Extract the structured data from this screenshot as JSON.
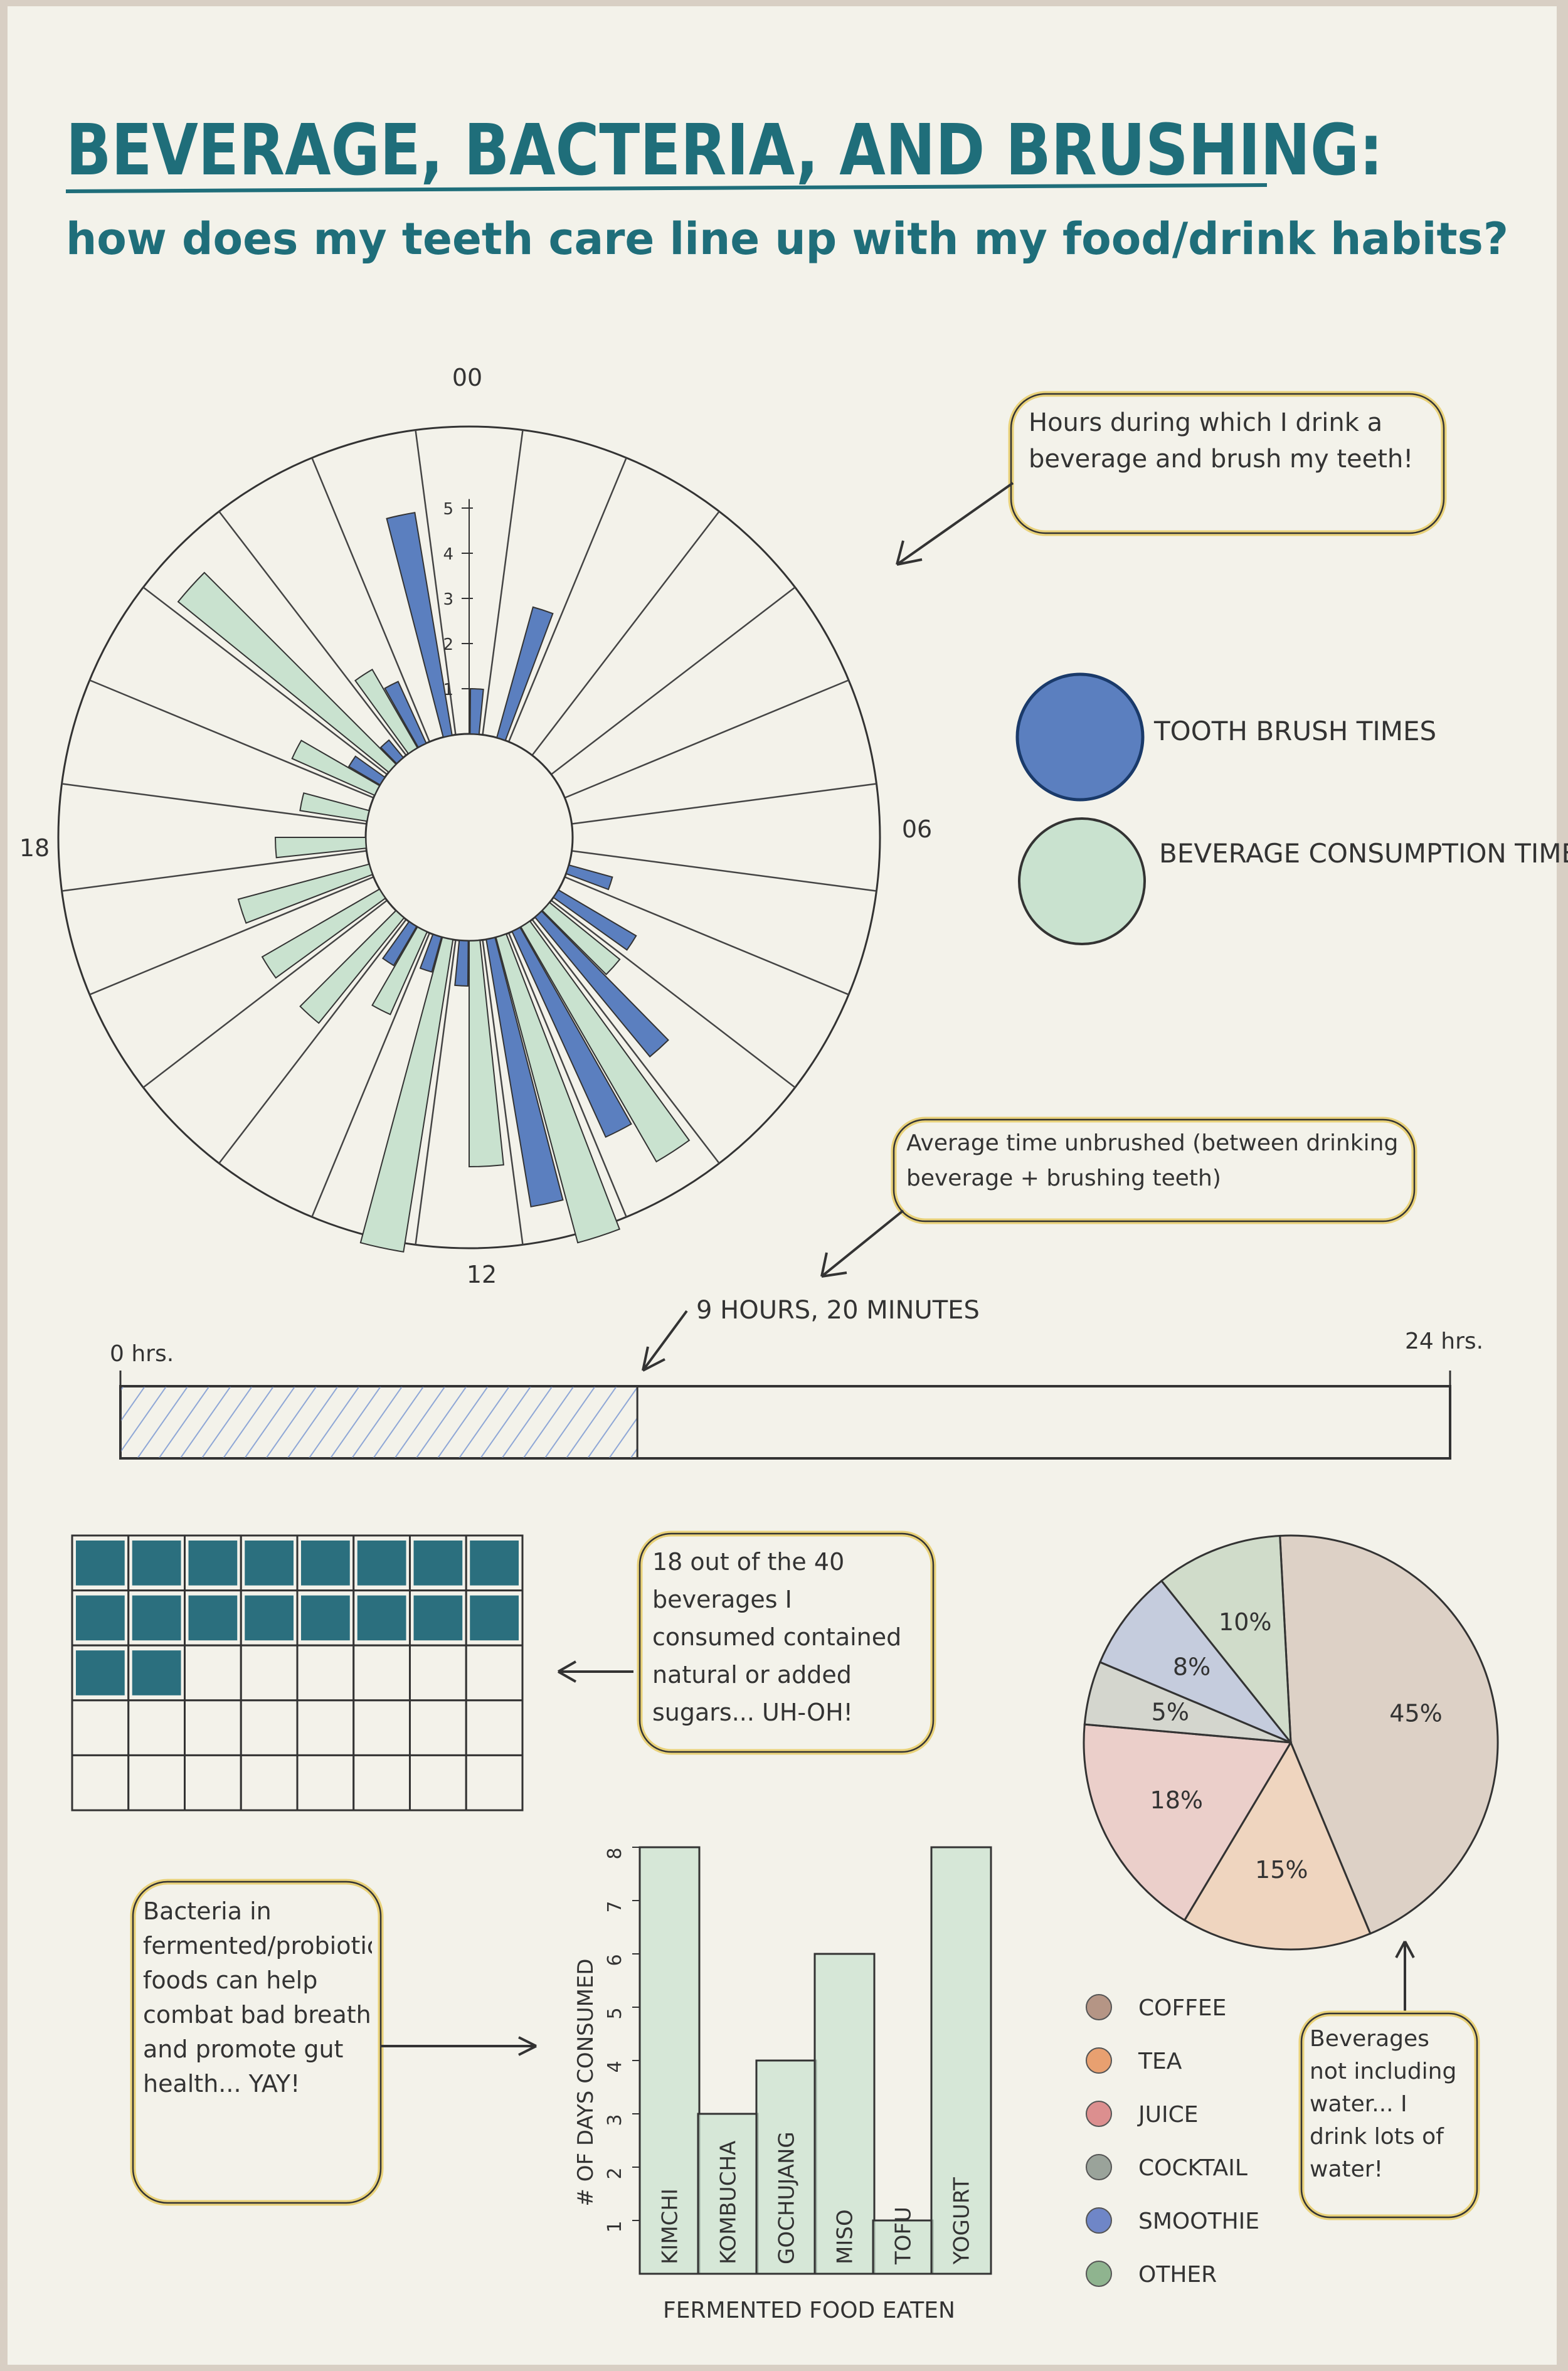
{
  "title": "BEVERAGE, BACTERIA, AND BRUSHING:",
  "subtitle": "how does my teeth care line up with my food/drink habits?",
  "colors": {
    "paper": "#f3f2ea",
    "ink": "#1f6e7a",
    "brush": "#5b7fbf",
    "beverage": "#c9e2cf",
    "yellow": "#e9d27a",
    "sugar": "#2b6f7e"
  },
  "chart_data": [
    {
      "type": "radial bar",
      "hour_labels": [
        "00",
        "06",
        "12",
        "18"
      ],
      "radial_ticks": [
        "1",
        "2",
        "3",
        "4",
        "5"
      ],
      "series": [
        {
          "name": "TOOTH BRUSH TIMES",
          "color": "#5b7fbf",
          "values": [
            1,
            3,
            0,
            0,
            0,
            0,
            0,
            1,
            2,
            4,
            5,
            6,
            1,
            0.8,
            1,
            0,
            0,
            0,
            0,
            0,
            0.8,
            0.5,
            1.5,
            5
          ]
        },
        {
          "name": "BEVERAGE CONSUMPTION TIMES",
          "color": "#c9e2cf",
          "values": [
            0,
            0,
            0,
            0,
            0,
            0,
            0,
            0,
            0,
            2,
            6,
            7,
            5,
            7,
            2,
            3,
            3,
            3,
            2,
            1.5,
            2,
            6,
            2,
            0
          ]
        }
      ],
      "annotation": "Hours during which I drink a beverage and brush my teeth!"
    },
    {
      "type": "bar",
      "orientation": "horizontal progress",
      "start_label": "0 hrs.",
      "end_label": "24 hrs.",
      "value_label": "9 HOURS, 20 MINUTES",
      "value_hours": 9.33,
      "max_hours": 24,
      "annotation": "Average time unbrushed (between drinking beverage + brushing teeth)"
    },
    {
      "type": "table",
      "subtype": "waffle",
      "rows": 5,
      "cols": 8,
      "filled": 18,
      "total": 40,
      "annotation": "18 out of the 40 beverages I consumed contained natural or added sugars... UH-OH!"
    },
    {
      "type": "pie",
      "slices": [
        {
          "label": "45%",
          "name": "COFFEE",
          "value": 45,
          "color": "#b59585"
        },
        {
          "label": "15%",
          "name": "TEA",
          "value": 15,
          "color": "#e8a070"
        },
        {
          "label": "18%",
          "name": "JUICE",
          "value": 18,
          "color": "#dc8f8f"
        },
        {
          "label": "5%",
          "name": "COCKTAIL",
          "value": 5,
          "color": "#9aa39a"
        },
        {
          "label": "8%",
          "name": "SMOOTHIE",
          "value": 8,
          "color": "#6f86c7"
        },
        {
          "label": "10%",
          "name": "OTHER",
          "value": 10,
          "color": "#8fb48f"
        }
      ],
      "legend": [
        "COFFEE",
        "TEA",
        "JUICE",
        "COCKTAIL",
        "SMOOTHIE",
        "OTHER"
      ],
      "annotation": "Beverages not including water... I drink lots of water!"
    },
    {
      "type": "bar",
      "categories": [
        "KIMCHI",
        "KOMBUCHA",
        "GOCHUJANG",
        "MISO",
        "TOFU",
        "YOGURT"
      ],
      "values": [
        8,
        3,
        4,
        6,
        1,
        8
      ],
      "ylabel": "# OF DAYS CONSUMED",
      "xlabel": "FERMENTED FOOD EATEN",
      "ylim": [
        0,
        8
      ],
      "yticks": [
        "1",
        "2",
        "3",
        "4",
        "5",
        "6",
        "7",
        "8"
      ],
      "annotation": "Bacteria in fermented/probiotic foods can help combat bad breath and promote gut health... YAY!"
    }
  ]
}
